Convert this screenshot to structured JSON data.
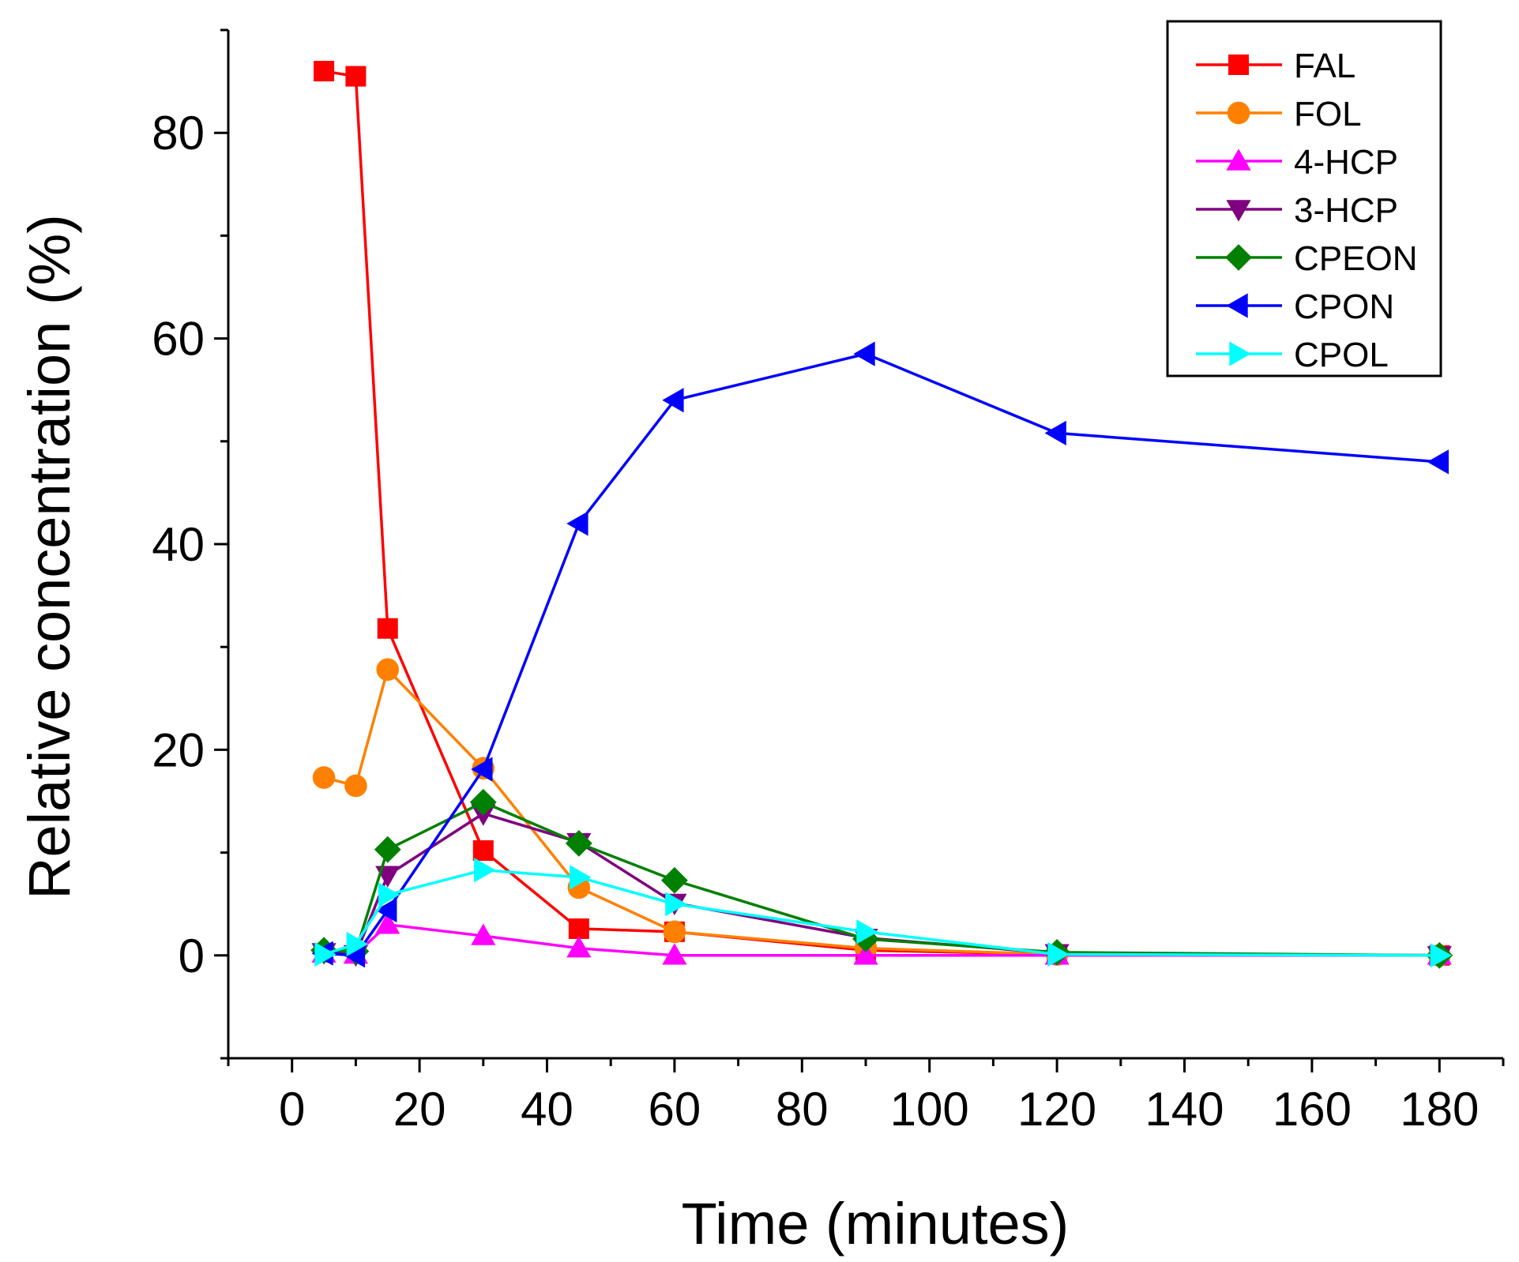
{
  "chart_data": {
    "type": "line",
    "title": "",
    "xlabel": "Time (minutes)",
    "ylabel": "Relative concentration (%)",
    "xlim": [
      -10,
      190
    ],
    "ylim": [
      -10,
      90
    ],
    "xticks": [
      0,
      20,
      40,
      60,
      80,
      100,
      120,
      140,
      160,
      180
    ],
    "yticks": [
      0,
      20,
      40,
      60,
      80
    ],
    "grid": false,
    "legend_position": "top-right",
    "x": [
      5,
      10,
      15,
      30,
      45,
      60,
      90,
      120,
      180
    ],
    "series": [
      {
        "name": "FAL",
        "color": "#ff0000",
        "marker": "square",
        "values": [
          86,
          85.5,
          31.8,
          10.2,
          2.6,
          2.3,
          0.5,
          0.1,
          0
        ]
      },
      {
        "name": "FOL",
        "color": "#ff8000",
        "marker": "circle",
        "values": [
          17.3,
          16.5,
          27.8,
          18.2,
          6.6,
          2.3,
          0.7,
          0.1,
          0
        ]
      },
      {
        "name": "4-HCP",
        "color": "#ff00ff",
        "marker": "triangle-up",
        "values": [
          0.2,
          0.1,
          3.0,
          1.9,
          0.7,
          0,
          0,
          0,
          0
        ]
      },
      {
        "name": "3-HCP",
        "color": "#800080",
        "marker": "triangle-down",
        "values": [
          0.3,
          0.1,
          7.8,
          13.8,
          11.0,
          5.1,
          1.7,
          0.2,
          0
        ]
      },
      {
        "name": "CPEON",
        "color": "#008000",
        "marker": "diamond",
        "values": [
          0.5,
          0.4,
          10.3,
          14.9,
          10.9,
          7.3,
          1.6,
          0.3,
          0
        ]
      },
      {
        "name": "CPON",
        "color": "#0000ff",
        "marker": "triangle-left",
        "values": [
          0.2,
          0,
          4.4,
          18.1,
          42,
          54,
          58.5,
          50.8,
          48
        ]
      },
      {
        "name": "CPOL",
        "color": "#00ffff",
        "marker": "triangle-right",
        "values": [
          0.1,
          1.1,
          5.9,
          8.3,
          7.6,
          5.0,
          2.3,
          0.1,
          0
        ]
      }
    ]
  }
}
